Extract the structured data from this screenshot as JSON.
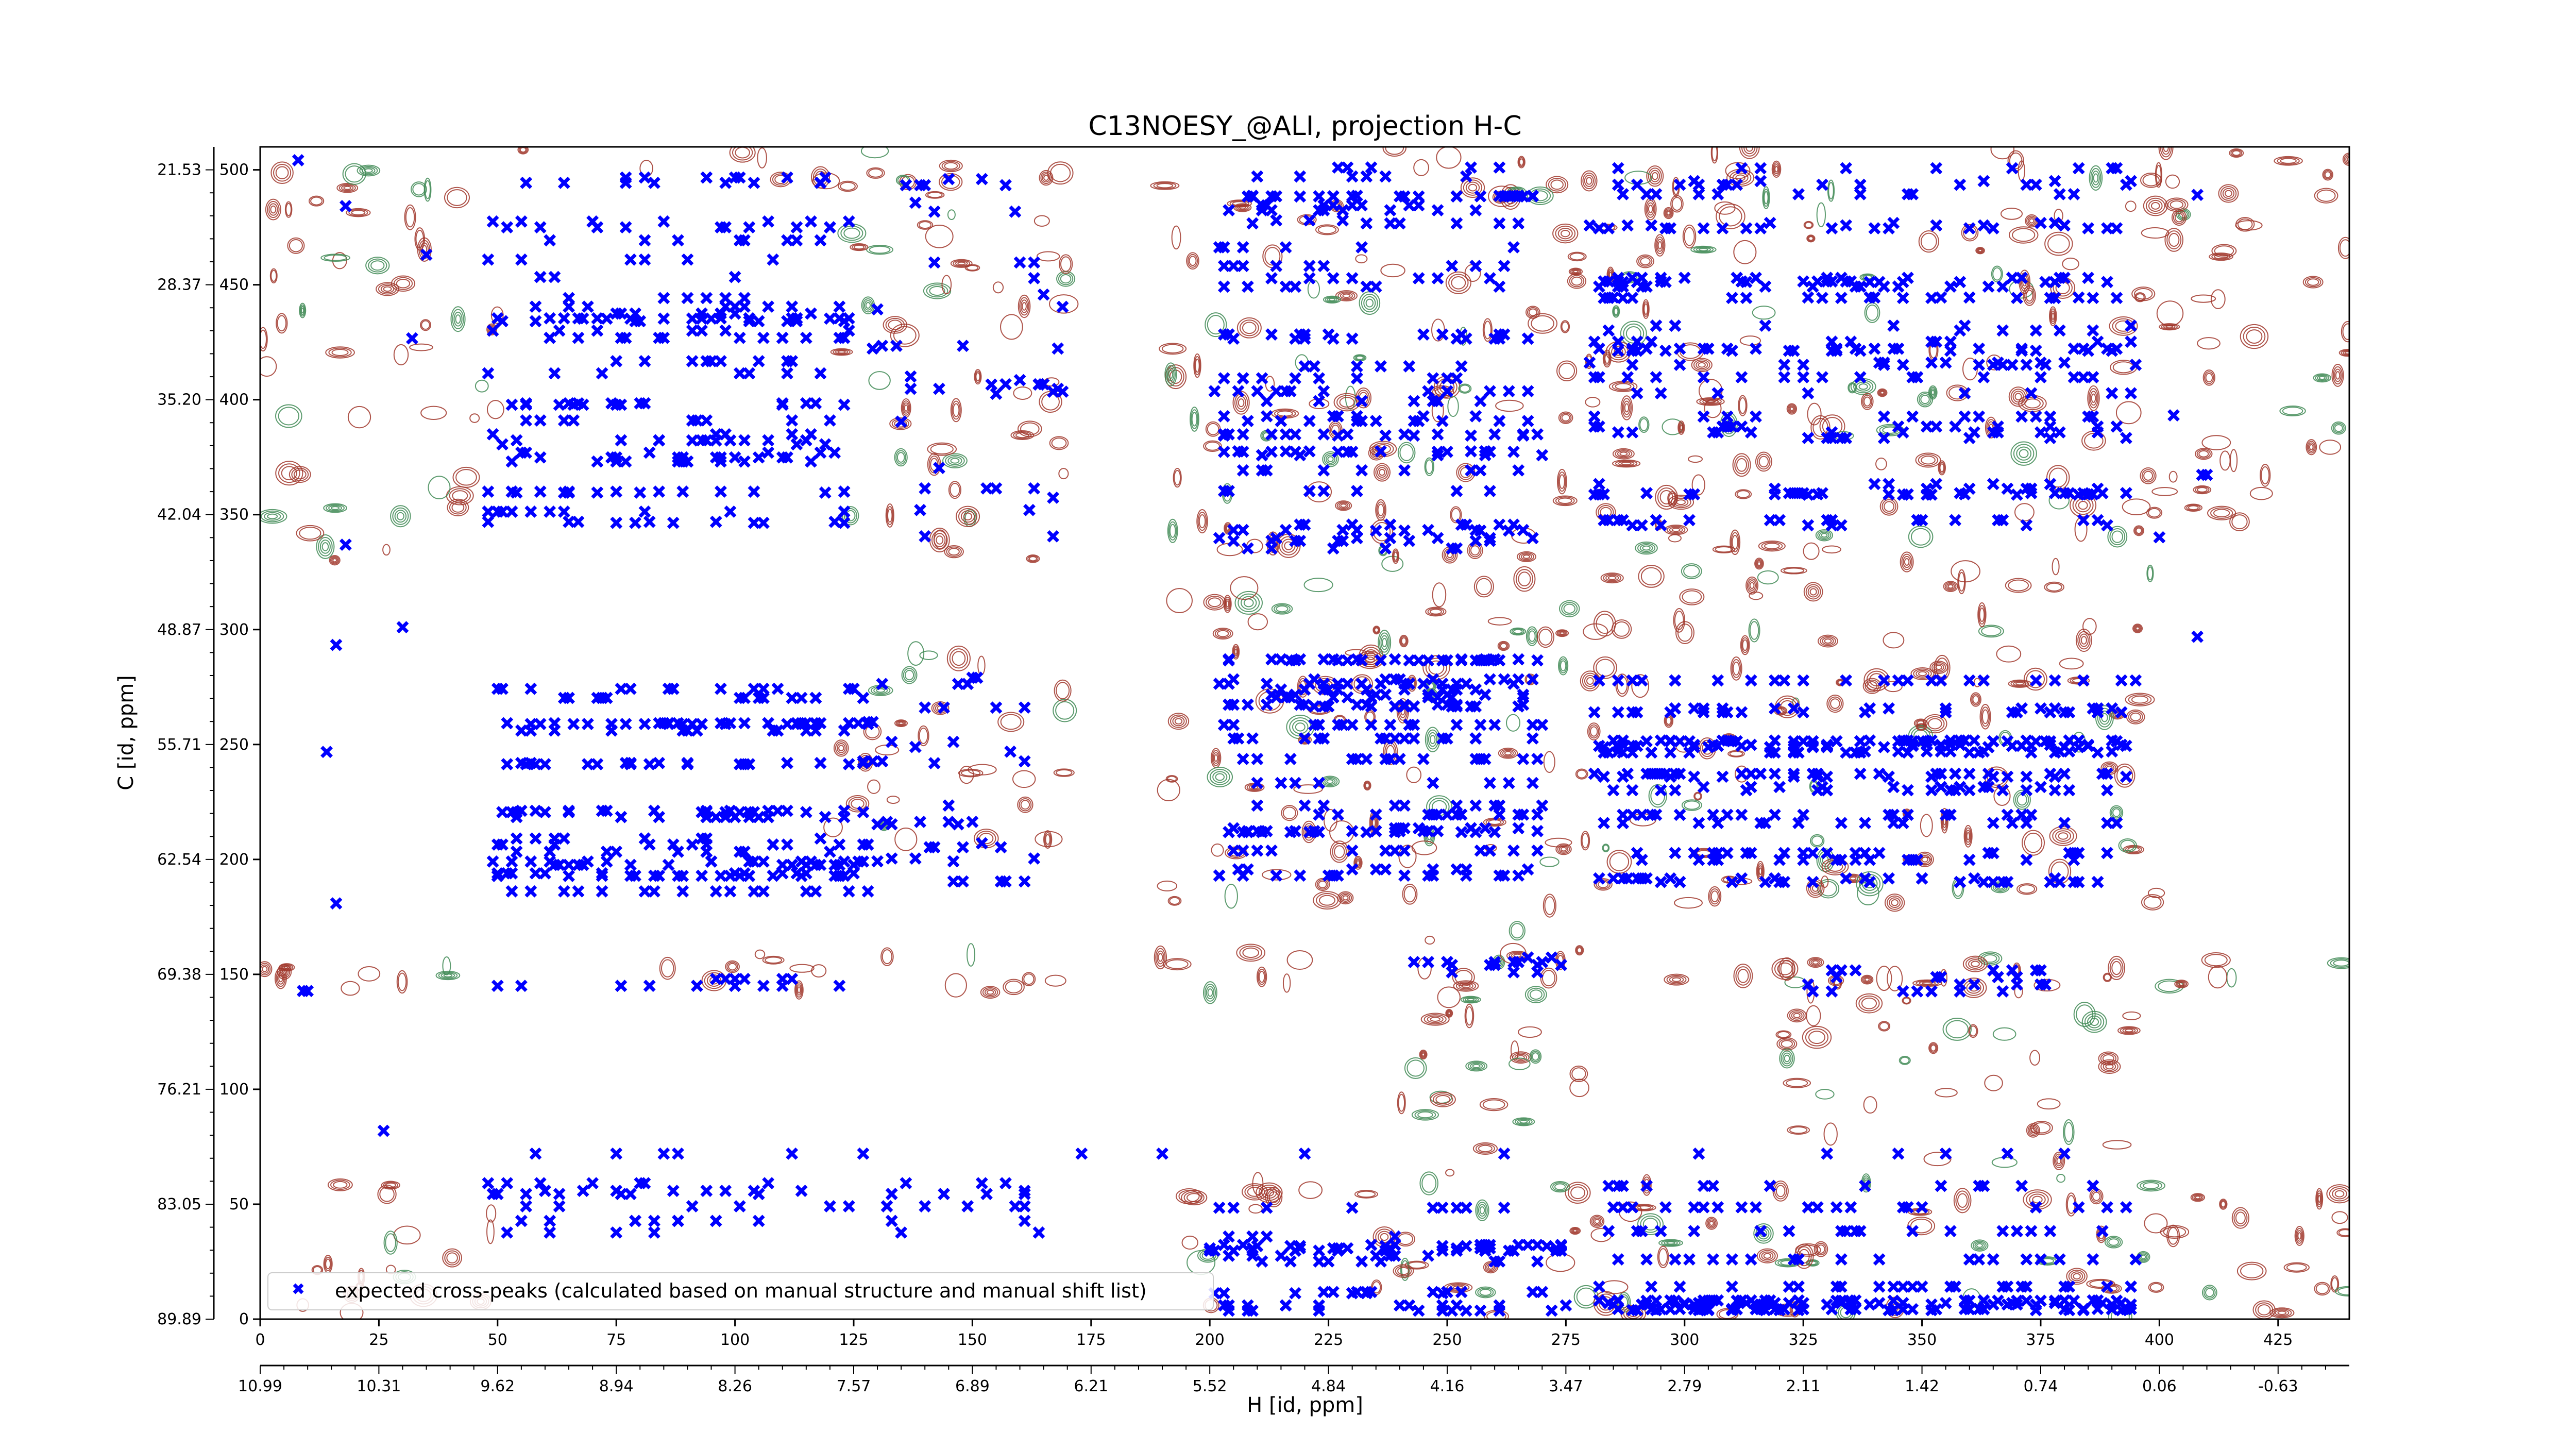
{
  "chart_data": {
    "type": "scatter",
    "title": "C13NOESY_@ALI, projection H-C",
    "xlabel": "H [id, ppm]",
    "ylabel": "C [id, ppm]",
    "xlim": [
      0,
      440
    ],
    "ylim": [
      0,
      510
    ],
    "x_index_ticks": [
      "0",
      "25",
      "50",
      "75",
      "100",
      "125",
      "150",
      "175",
      "200",
      "225",
      "250",
      "275",
      "300",
      "325",
      "350",
      "375",
      "400",
      "425"
    ],
    "x_ppm_ticks": [
      "10.99",
      "10.31",
      "9.62",
      "8.94",
      "8.26",
      "7.57",
      "6.89",
      "6.21",
      "5.52",
      "4.84",
      "4.16",
      "3.47",
      "2.79",
      "2.11",
      "1.42",
      "0.74",
      "0.06",
      "-0.63"
    ],
    "y_index_ticks": [
      "0",
      "50",
      "100",
      "150",
      "200",
      "250",
      "300",
      "350",
      "400",
      "450",
      "500"
    ],
    "y_ppm_ticks": [
      "89.89",
      "83.05",
      "76.21",
      "69.38",
      "62.54",
      "55.71",
      "48.87",
      "42.04",
      "35.20",
      "28.37",
      "21.53"
    ],
    "legend": {
      "placement": "lower-left",
      "label": "expected cross-peaks (calculated based on manual structure and manual shift list)"
    },
    "colors": {
      "markers": "#0000ff",
      "positive_contours": "#a0362a",
      "negative_contours": "#3f8a55"
    },
    "series": [
      {
        "name": "expected cross-peaks (calculated based on manual structure and manual shift list)",
        "marker": "x",
        "clusters": [
          {
            "x": [
              48,
              125
            ],
            "y": [
              345,
              505
            ],
            "n": 260
          },
          {
            "x": [
              48,
              128
            ],
            "y": [
              185,
              280
            ],
            "n": 260
          },
          {
            "x": [
              126,
              165
            ],
            "y": [
              190,
              280
            ],
            "n": 45
          },
          {
            "x": [
              125,
              170
            ],
            "y": [
              340,
              500
            ],
            "n": 45
          },
          {
            "x": [
              200,
              270
            ],
            "y": [
              335,
              505
            ],
            "n": 280
          },
          {
            "x": [
              200,
              270
            ],
            "y": [
              185,
              290
            ],
            "n": 280
          },
          {
            "x": [
              280,
              395
            ],
            "y": [
              340,
              505
            ],
            "n": 380
          },
          {
            "x": [
              280,
              395
            ],
            "y": [
              185,
              290
            ],
            "n": 380
          },
          {
            "x": [
              200,
              275
            ],
            "y": [
              0,
              60
            ],
            "n": 130
          },
          {
            "x": [
              280,
              395
            ],
            "y": [
              0,
              60
            ],
            "n": 230
          },
          {
            "x": [
              48,
              165
            ],
            "y": [
              30,
              60
            ],
            "n": 60
          },
          {
            "x": [
              240,
              275
            ],
            "y": [
              140,
              160
            ],
            "n": 18
          },
          {
            "x": [
              325,
              385
            ],
            "y": [
              138,
              157
            ],
            "n": 25
          },
          {
            "x": [
              5,
              35
            ],
            "y": [
              20,
              505
            ],
            "n": 12
          },
          {
            "x": [
              395,
              410
            ],
            "y": [
              230,
              500
            ],
            "n": 6
          }
        ],
        "rows": [
          {
            "y": 72,
            "x": [
              58,
              75,
              85,
              88,
              112,
              127,
              173,
              190,
              220,
              262,
              303,
              330,
              345,
              355,
              368,
              380
            ]
          },
          {
            "y": 145,
            "x": [
              50,
              55,
              76,
              82,
              92,
              100,
              106,
              110,
              122
            ]
          },
          {
            "y": 148,
            "x": [
              96,
              98,
              100,
              102,
              110,
              112
            ]
          }
        ]
      }
    ]
  }
}
